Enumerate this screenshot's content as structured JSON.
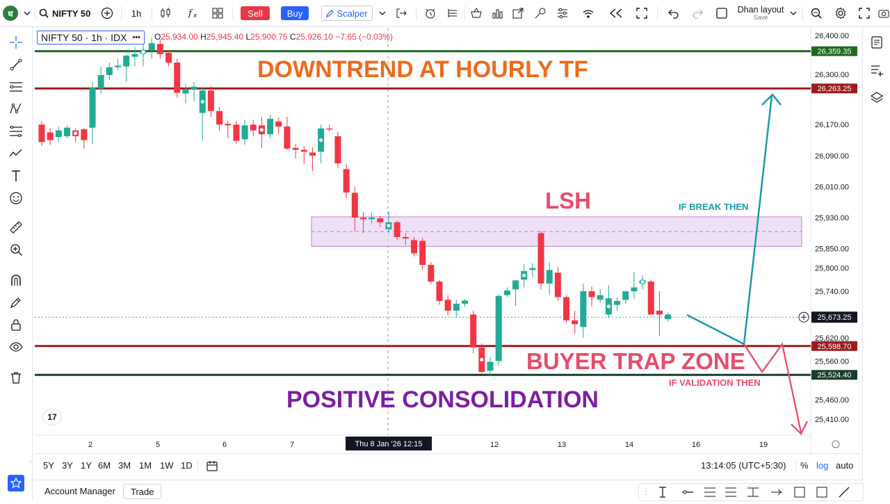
{
  "topbar": {
    "symbol": "NIFTY 50",
    "interval": "1h",
    "sell": "Sell",
    "buy": "Buy",
    "scalper": "Scalper",
    "layout_name": "Dhan layout",
    "layout_save": "Save"
  },
  "legend": {
    "title": "NIFTY 50 · 1h · IDX",
    "o_label": "O",
    "o": "25,934.00",
    "h_label": "H",
    "h": "25,945.40",
    "l_label": "L",
    "l": "25,900.75",
    "c_label": "C",
    "c": "25,926.10",
    "change": "−7.65 (−0.03%)"
  },
  "chart_data": {
    "type": "candlestick",
    "symbol": "NIFTY 50",
    "interval": "1h",
    "y_ticks": [
      26400,
      26300,
      26170,
      26090,
      26010,
      25930,
      25850,
      25800,
      25740,
      25620,
      25560,
      25460,
      25410
    ],
    "y_tick_labels": [
      "26,400.00",
      "26,300.00",
      "26,170.00",
      "26,090.00",
      "26,010.00",
      "25,930.00",
      "25,850.00",
      "25,800.00",
      "25,740.00",
      "25,620.00",
      "25,560.00",
      "25,460.00",
      "25,410.00"
    ],
    "x_tick_labels": [
      "2",
      "5",
      "6",
      "7",
      "12",
      "13",
      "14",
      "16",
      "19"
    ],
    "crosshair_label": "Thu 8 Jan '26   12:15",
    "price_lines": [
      {
        "price": 26359.35,
        "label": "26,359.35",
        "color": "#1e6b1e"
      },
      {
        "price": 26263.25,
        "label": "26,263.25",
        "color": "#9c1c1c"
      },
      {
        "price": 25598.7,
        "label": "25,598.70",
        "color": "#9c1c1c"
      },
      {
        "price": 25524.4,
        "label": "25,524.40",
        "color": "#1a3d2b"
      }
    ],
    "last_price": {
      "price": 25673.25,
      "label": "25,673.25"
    },
    "zone": {
      "top": 25932,
      "bottom": 25856,
      "mid": 25894
    },
    "annotations": {
      "title": "DOWNTREND AT HOURLY TF",
      "lsh": "LSH",
      "break": "IF BREAK THEN",
      "trap": "BUYER TRAP ZONE",
      "validation": "IF VALIDATION THEN",
      "consolidation": "POSITIVE CONSOLIDATION"
    },
    "candles": [
      [
        26170,
        26178,
        26115,
        26125
      ],
      [
        26150,
        26162,
        26118,
        26130
      ],
      [
        26138,
        26165,
        26125,
        26155
      ],
      [
        26140,
        26168,
        26135,
        26162
      ],
      [
        26155,
        26160,
        26125,
        26140
      ],
      [
        26158,
        26162,
        26108,
        26130
      ],
      [
        26162,
        26280,
        26120,
        26265
      ],
      [
        26263,
        26320,
        26250,
        26298
      ],
      [
        26298,
        26330,
        26285,
        26318
      ],
      [
        26318,
        26340,
        26310,
        26322
      ],
      [
        26320,
        26350,
        26280,
        26348
      ],
      [
        26345,
        26370,
        26320,
        26352
      ],
      [
        26354,
        26380,
        26320,
        26360
      ],
      [
        26362,
        26395,
        26340,
        26380
      ],
      [
        26378,
        26390,
        26340,
        26352
      ],
      [
        26355,
        26360,
        26320,
        26330
      ],
      [
        26330,
        26340,
        26240,
        26252
      ],
      [
        26250,
        26275,
        26225,
        26260
      ],
      [
        26262,
        26280,
        26230,
        26268
      ],
      [
        26200,
        26265,
        26130,
        26258
      ],
      [
        26258,
        26270,
        26190,
        26205
      ],
      [
        26205,
        26215,
        26155,
        26170
      ],
      [
        26172,
        26180,
        26135,
        26168
      ],
      [
        26170,
        26180,
        26120,
        26128
      ],
      [
        26132,
        26182,
        26118,
        26168
      ],
      [
        26170,
        26182,
        26140,
        26155
      ],
      [
        26168,
        26190,
        26110,
        26145
      ],
      [
        26145,
        26195,
        26135,
        26185
      ],
      [
        26178,
        26188,
        26145,
        26165
      ],
      [
        26165,
        26190,
        26105,
        26108
      ],
      [
        26110,
        26120,
        26082,
        26105
      ],
      [
        26105,
        26115,
        26068,
        26100
      ],
      [
        26098,
        26112,
        26050,
        26090
      ],
      [
        26100,
        26170,
        26070,
        26160
      ],
      [
        26160,
        26170,
        26152,
        26158
      ],
      [
        26140,
        26152,
        26058,
        26070
      ],
      [
        26055,
        26068,
        25980,
        25995
      ],
      [
        25994,
        26010,
        25895,
        25930
      ],
      [
        25930,
        25945,
        25890,
        25926
      ],
      [
        25926,
        25944,
        25915,
        25930
      ],
      [
        25928,
        25935,
        25905,
        25918
      ],
      [
        25900,
        25945,
        25890,
        25918
      ],
      [
        25918,
        25922,
        25872,
        25880
      ],
      [
        25880,
        25890,
        25860,
        25876
      ],
      [
        25872,
        25880,
        25830,
        25838
      ],
      [
        25870,
        25878,
        25795,
        25808
      ],
      [
        25808,
        25815,
        25758,
        25765
      ],
      [
        25765,
        25770,
        25705,
        25715
      ],
      [
        25718,
        25730,
        25678,
        25690
      ],
      [
        25690,
        25718,
        25672,
        25708
      ],
      [
        25708,
        25720,
        25700,
        25716
      ],
      [
        25680,
        25690,
        25580,
        25595
      ],
      [
        25595,
        25606,
        25528,
        25532
      ],
      [
        25535,
        25570,
        25520,
        25558
      ],
      [
        25560,
        25732,
        25548,
        25728
      ],
      [
        25730,
        25750,
        25725,
        25742
      ],
      [
        25745,
        25770,
        25702,
        25768
      ],
      [
        25770,
        25810,
        25750,
        25792
      ],
      [
        25795,
        25812,
        25775,
        25800
      ],
      [
        25890,
        25895,
        25745,
        25760
      ],
      [
        25760,
        25815,
        25730,
        25795
      ],
      [
        25788,
        25802,
        25715,
        25725
      ],
      [
        25725,
        25730,
        25658,
        25665
      ],
      [
        25665,
        25690,
        25630,
        25655
      ],
      [
        25648,
        25760,
        25620,
        25740
      ],
      [
        25740,
        25752,
        25700,
        25725
      ],
      [
        25718,
        25745,
        25710,
        25730
      ],
      [
        25680,
        25755,
        25670,
        25722
      ],
      [
        25705,
        25725,
        25690,
        25715
      ],
      [
        25718,
        25742,
        25708,
        25740
      ],
      [
        25740,
        25790,
        25720,
        25750
      ],
      [
        25760,
        25780,
        25745,
        25768
      ],
      [
        25765,
        25770,
        25680,
        25680
      ],
      [
        25690,
        25740,
        25625,
        25680
      ],
      [
        25668,
        25685,
        25662,
        25680
      ]
    ]
  },
  "right_toolbar": {},
  "bottombar": {
    "ranges": [
      "5Y",
      "3Y",
      "1Y",
      "6M",
      "3M",
      "1M",
      "1W",
      "1D"
    ],
    "time": "13:14:05 (UTC+5:30)",
    "pct": "%",
    "log": "log",
    "auto": "auto"
  },
  "footer": {
    "tabs": [
      "Account Manager",
      "Trade"
    ]
  },
  "colors": {
    "up": "#22ab94",
    "down": "#f23645",
    "accent": "#2962ff",
    "annot_orange": "#ec6b1e",
    "annot_red": "#e84c6a",
    "annot_purple": "#7b1fa2",
    "annot_teal": "#1b9aa8"
  }
}
